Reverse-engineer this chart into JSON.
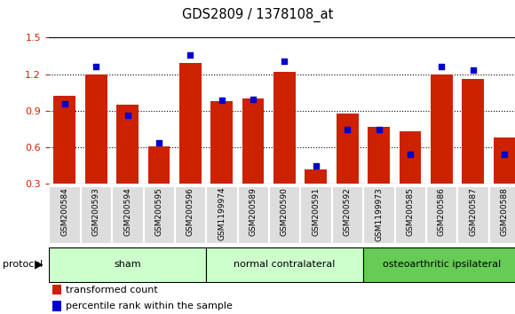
{
  "title": "GDS2809 / 1378108_at",
  "samples": [
    "GSM200584",
    "GSM200593",
    "GSM200594",
    "GSM200595",
    "GSM200596",
    "GSM1199974",
    "GSM200589",
    "GSM200590",
    "GSM200591",
    "GSM200592",
    "GSM1199973",
    "GSM200585",
    "GSM200586",
    "GSM200587",
    "GSM200588"
  ],
  "red_values": [
    1.02,
    1.2,
    0.95,
    0.61,
    1.29,
    0.98,
    1.0,
    1.22,
    0.42,
    0.88,
    0.77,
    0.73,
    1.2,
    1.16,
    0.68
  ],
  "blue_values_pct": [
    55,
    80,
    47,
    28,
    88,
    57,
    58,
    84,
    12,
    37,
    37,
    20,
    80,
    78,
    20
  ],
  "group_boundaries": [
    {
      "label": "sham",
      "start": 0,
      "end": 5,
      "color": "#ccffcc"
    },
    {
      "label": "normal contralateral",
      "start": 5,
      "end": 10,
      "color": "#ccffcc"
    },
    {
      "label": "osteoarthritic ipsilateral",
      "start": 10,
      "end": 15,
      "color": "#66cc55"
    }
  ],
  "ylim_left": [
    0.3,
    1.5
  ],
  "ylim_right": [
    0,
    100
  ],
  "yticks_left": [
    0.3,
    0.6,
    0.9,
    1.2,
    1.5
  ],
  "yticks_right": [
    0,
    25,
    50,
    75,
    100
  ],
  "bar_color": "#cc2200",
  "dot_color": "#0000cc",
  "bg_color": "#ffffff",
  "plot_bg": "#ffffff",
  "left_axis_color": "#cc2200",
  "right_axis_color": "#0000cc",
  "legend_red": "transformed count",
  "legend_blue": "percentile rank within the sample",
  "protocol_label": "protocol",
  "bar_width": 0.7,
  "cell_bg": "#dddddd",
  "grid_lines": [
    0.6,
    0.9,
    1.2
  ]
}
